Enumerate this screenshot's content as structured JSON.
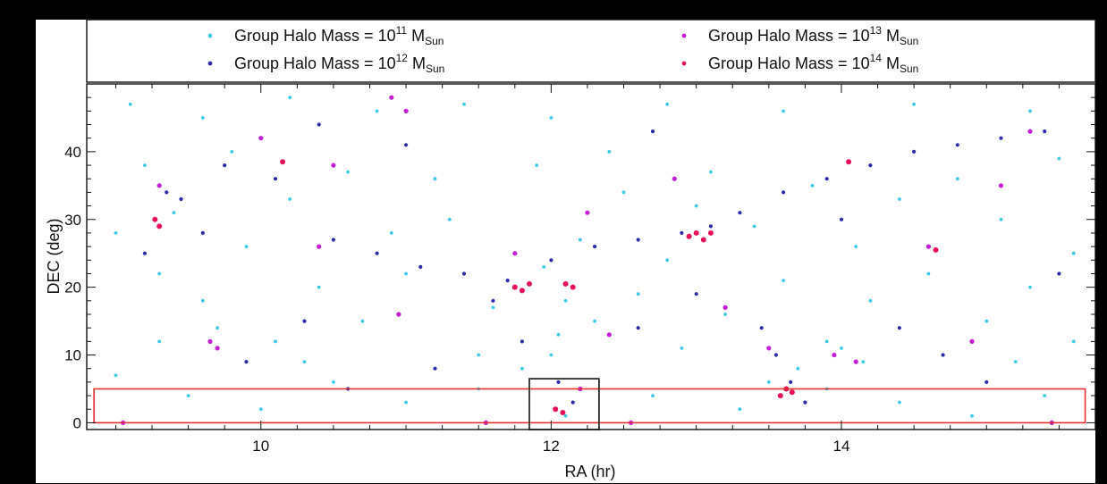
{
  "chart_data": {
    "type": "scatter",
    "title": "",
    "xlabel": "RA (hr)",
    "ylabel": "DEC (deg)",
    "xlim": [
      8.8,
      15.75
    ],
    "ylim": [
      -1,
      50
    ],
    "x_ticks": [
      10,
      12,
      14
    ],
    "x_tick_labels": [
      "10",
      "12",
      "14"
    ],
    "y_ticks": [
      0,
      10,
      20,
      30,
      40
    ],
    "y_tick_labels": [
      "0",
      "10",
      "20",
      "30",
      "40"
    ],
    "grid": false,
    "legend_position": "top (separate panel, two columns)",
    "legend": [
      {
        "series": "m11",
        "prefix": "Group Halo Mass = 10",
        "exp": "11",
        "unit": "M",
        "sub": "Sun",
        "color": "#3cc8e6"
      },
      {
        "series": "m12",
        "prefix": "Group Halo Mass = 10",
        "exp": "12",
        "unit": "M",
        "sub": "Sun",
        "color": "#2c2ca8"
      },
      {
        "series": "m13",
        "prefix": "Group Halo Mass = 10",
        "exp": "13",
        "unit": "M",
        "sub": "Sun",
        "color": "#c21fd4"
      },
      {
        "series": "m14",
        "prefix": "Group Halo Mass = 10",
        "exp": "14",
        "unit": "M",
        "sub": "Sun",
        "color": "#e6105a"
      }
    ],
    "series": [
      {
        "name": "Group Halo Mass = 10^11 M_Sun",
        "key": "m11",
        "color": "#3cc8e6",
        "points": [
          [
            9.1,
            47
          ],
          [
            9.6,
            45
          ],
          [
            10.2,
            48
          ],
          [
            10.8,
            46
          ],
          [
            11.4,
            47
          ],
          [
            12.0,
            45
          ],
          [
            12.8,
            47
          ],
          [
            13.6,
            46
          ],
          [
            14.5,
            47
          ],
          [
            15.3,
            46
          ],
          [
            9.0,
            28
          ],
          [
            9.3,
            22
          ],
          [
            9.6,
            18
          ],
          [
            9.9,
            26
          ],
          [
            10.2,
            33
          ],
          [
            10.4,
            20
          ],
          [
            10.7,
            15
          ],
          [
            11.0,
            22
          ],
          [
            11.3,
            30
          ],
          [
            11.6,
            17
          ],
          [
            12.0,
            10
          ],
          [
            12.3,
            15
          ],
          [
            12.6,
            19
          ],
          [
            12.9,
            11
          ],
          [
            13.2,
            16
          ],
          [
            13.6,
            21
          ],
          [
            13.9,
            12
          ],
          [
            14.2,
            18
          ],
          [
            14.6,
            22
          ],
          [
            15.0,
            15
          ],
          [
            15.3,
            20
          ],
          [
            15.6,
            25
          ],
          [
            9.2,
            38
          ],
          [
            9.8,
            40
          ],
          [
            10.6,
            37
          ],
          [
            11.2,
            36
          ],
          [
            11.9,
            38
          ],
          [
            12.5,
            34
          ],
          [
            13.1,
            37
          ],
          [
            13.8,
            35
          ],
          [
            14.4,
            33
          ],
          [
            15.1,
            30
          ],
          [
            9.0,
            7
          ],
          [
            9.5,
            4
          ],
          [
            10.0,
            2
          ],
          [
            10.5,
            6
          ],
          [
            11.0,
            3
          ],
          [
            11.5,
            5
          ],
          [
            12.1,
            1
          ],
          [
            12.7,
            4
          ],
          [
            13.3,
            2
          ],
          [
            13.9,
            5
          ],
          [
            14.4,
            3
          ],
          [
            14.9,
            1
          ],
          [
            15.4,
            4
          ],
          [
            12.05,
            13
          ],
          [
            12.1,
            18
          ],
          [
            11.95,
            23
          ],
          [
            12.2,
            27
          ],
          [
            13.7,
            8
          ],
          [
            14.0,
            11
          ],
          [
            14.15,
            9
          ],
          [
            10.1,
            12
          ],
          [
            10.3,
            9
          ],
          [
            9.7,
            14
          ],
          [
            11.5,
            10
          ],
          [
            12.8,
            24
          ],
          [
            13.4,
            29
          ],
          [
            14.8,
            36
          ],
          [
            15.5,
            39
          ],
          [
            9.4,
            31
          ],
          [
            10.9,
            28
          ],
          [
            12.4,
            40
          ],
          [
            13.0,
            32
          ],
          [
            14.1,
            26
          ],
          [
            15.2,
            9
          ],
          [
            15.6,
            12
          ],
          [
            9.3,
            12
          ],
          [
            11.8,
            8
          ],
          [
            13.5,
            6
          ]
        ]
      },
      {
        "name": "Group Halo Mass = 10^12 M_Sun",
        "key": "m12",
        "color": "#2c2ca8",
        "points": [
          [
            9.35,
            34
          ],
          [
            9.45,
            33
          ],
          [
            9.75,
            38
          ],
          [
            10.1,
            36
          ],
          [
            10.5,
            27
          ],
          [
            10.8,
            25
          ],
          [
            11.1,
            23
          ],
          [
            11.4,
            22
          ],
          [
            11.7,
            21
          ],
          [
            12.0,
            24
          ],
          [
            12.3,
            26
          ],
          [
            12.6,
            27
          ],
          [
            12.9,
            28
          ],
          [
            13.1,
            29
          ],
          [
            13.3,
            31
          ],
          [
            13.6,
            34
          ],
          [
            13.9,
            36
          ],
          [
            14.2,
            38
          ],
          [
            14.5,
            40
          ],
          [
            14.8,
            41
          ],
          [
            15.1,
            42
          ],
          [
            15.4,
            43
          ],
          [
            11.6,
            18
          ],
          [
            11.8,
            12
          ],
          [
            12.05,
            6
          ],
          [
            12.15,
            3
          ],
          [
            13.45,
            14
          ],
          [
            13.55,
            10
          ],
          [
            13.65,
            6
          ],
          [
            13.75,
            3
          ],
          [
            9.9,
            9
          ],
          [
            10.3,
            15
          ],
          [
            10.6,
            5
          ],
          [
            11.2,
            8
          ],
          [
            12.6,
            14
          ],
          [
            13.0,
            19
          ],
          [
            14.4,
            14
          ],
          [
            14.7,
            10
          ],
          [
            15.0,
            6
          ],
          [
            15.5,
            22
          ],
          [
            9.2,
            25
          ],
          [
            9.6,
            28
          ],
          [
            10.4,
            44
          ],
          [
            11.0,
            41
          ],
          [
            12.7,
            43
          ],
          [
            14.0,
            30
          ]
        ]
      },
      {
        "name": "Group Halo Mass = 10^13 M_Sun",
        "key": "m13",
        "color": "#c21fd4",
        "points": [
          [
            9.3,
            35
          ],
          [
            10.0,
            42
          ],
          [
            10.4,
            26
          ],
          [
            10.9,
            48
          ],
          [
            11.0,
            46
          ],
          [
            11.75,
            25
          ],
          [
            12.25,
            31
          ],
          [
            12.15,
            20
          ],
          [
            13.5,
            11
          ],
          [
            14.1,
            9
          ],
          [
            14.6,
            26
          ],
          [
            15.3,
            43
          ],
          [
            9.65,
            12
          ],
          [
            9.7,
            11
          ],
          [
            10.95,
            16
          ],
          [
            12.2,
            5
          ],
          [
            12.4,
            13
          ],
          [
            13.2,
            17
          ],
          [
            13.95,
            10
          ],
          [
            15.1,
            35
          ],
          [
            10.5,
            38
          ],
          [
            12.85,
            36
          ],
          [
            14.9,
            12
          ],
          [
            9.05,
            0
          ],
          [
            11.55,
            0
          ],
          [
            12.55,
            0
          ],
          [
            15.45,
            0
          ]
        ]
      },
      {
        "name": "Group Halo Mass = 10^14 M_Sun",
        "key": "m14",
        "color": "#e6105a",
        "points": [
          [
            9.27,
            30
          ],
          [
            9.3,
            29
          ],
          [
            11.75,
            20
          ],
          [
            11.8,
            19.5
          ],
          [
            11.85,
            20.5
          ],
          [
            12.1,
            20.5
          ],
          [
            12.15,
            20
          ],
          [
            12.95,
            27.5
          ],
          [
            13.0,
            28
          ],
          [
            13.05,
            27
          ],
          [
            13.1,
            28
          ],
          [
            13.58,
            4
          ],
          [
            13.62,
            5
          ],
          [
            13.66,
            4.5
          ],
          [
            14.05,
            38.5
          ],
          [
            12.03,
            2
          ],
          [
            12.08,
            1.5
          ],
          [
            10.15,
            38.5
          ],
          [
            14.65,
            25.5
          ]
        ]
      }
    ],
    "annotations": [
      {
        "shape": "rectangle",
        "color": "#e53030",
        "ra_range": [
          8.85,
          15.68
        ],
        "dec_range": [
          0,
          5
        ]
      },
      {
        "shape": "rectangle",
        "color": "#111111",
        "ra_range": [
          11.85,
          12.33
        ],
        "dec_range": [
          -1,
          6.5
        ]
      }
    ]
  }
}
